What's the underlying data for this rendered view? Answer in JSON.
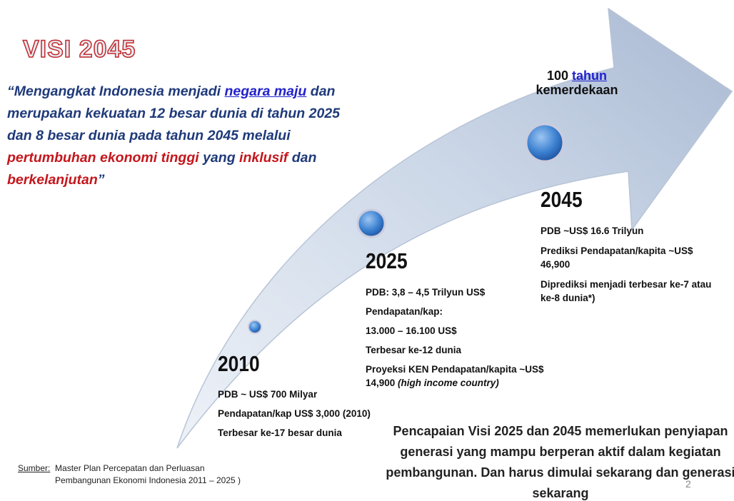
{
  "title": "VISI 2045",
  "quote": {
    "segments": [
      {
        "text": "“Mengangkat Indonesia menjadi ",
        "style": "plain"
      },
      {
        "text": "negara maju",
        "style": "link"
      },
      {
        "text": " dan merupakan kekuatan 12 besar dunia di tahun 2025 dan 8 besar dunia pada tahun 2045 melalui ",
        "style": "plain"
      },
      {
        "text": "pertumbuhan ekonomi tinggi",
        "style": "red"
      },
      {
        "text": " yang ",
        "style": "plain"
      },
      {
        "text": "inklusif",
        "style": "red"
      },
      {
        "text": " dan ",
        "style": "plain"
      },
      {
        "text": "berkelanjutan",
        "style": "red"
      },
      {
        "text": "”",
        "style": "plain"
      }
    ]
  },
  "anniversary": {
    "number": "100",
    "link": "tahun",
    "word": "kemerdekaan"
  },
  "milestones": [
    {
      "year": "2010",
      "items": [
        "PDB ~ US$ 700 Milyar",
        "Pendapatan/kap US$ 3,000 (2010)",
        "Terbesar ke-17 besar dunia"
      ]
    },
    {
      "year": "2025",
      "items": [
        "PDB: 3,8 – 4,5 Trilyun US$",
        "Pendapatan/kap:",
        "13.000 – 16.100 US$",
        "Terbesar ke-12 dunia",
        {
          "text": "Proyeksi KEN Pendapatan/kapita ~US$ 14,900 ",
          "italic": "(high income country)"
        }
      ]
    },
    {
      "year": "2045",
      "items": [
        "PDB ~US$ 16.6 Trilyun",
        "Prediksi Pendapatan/kapita ~US$ 46,900",
        "Diprediksi menjadi terbesar ke-7 atau ke-8 dunia*)"
      ]
    }
  ],
  "note": "Pencapaian Visi 2025 dan 2045 memerlukan penyiapan generasi yang mampu berperan aktif dalam kegiatan pembangunan. Dan harus dimulai sekarang dan generasi sekarang",
  "source": {
    "label": "Sumber:",
    "text": "Master Plan Percepatan dan Perluasan Pembangunan Ekonomi Indonesia 2011 – 2025 )"
  },
  "page_number": "2"
}
